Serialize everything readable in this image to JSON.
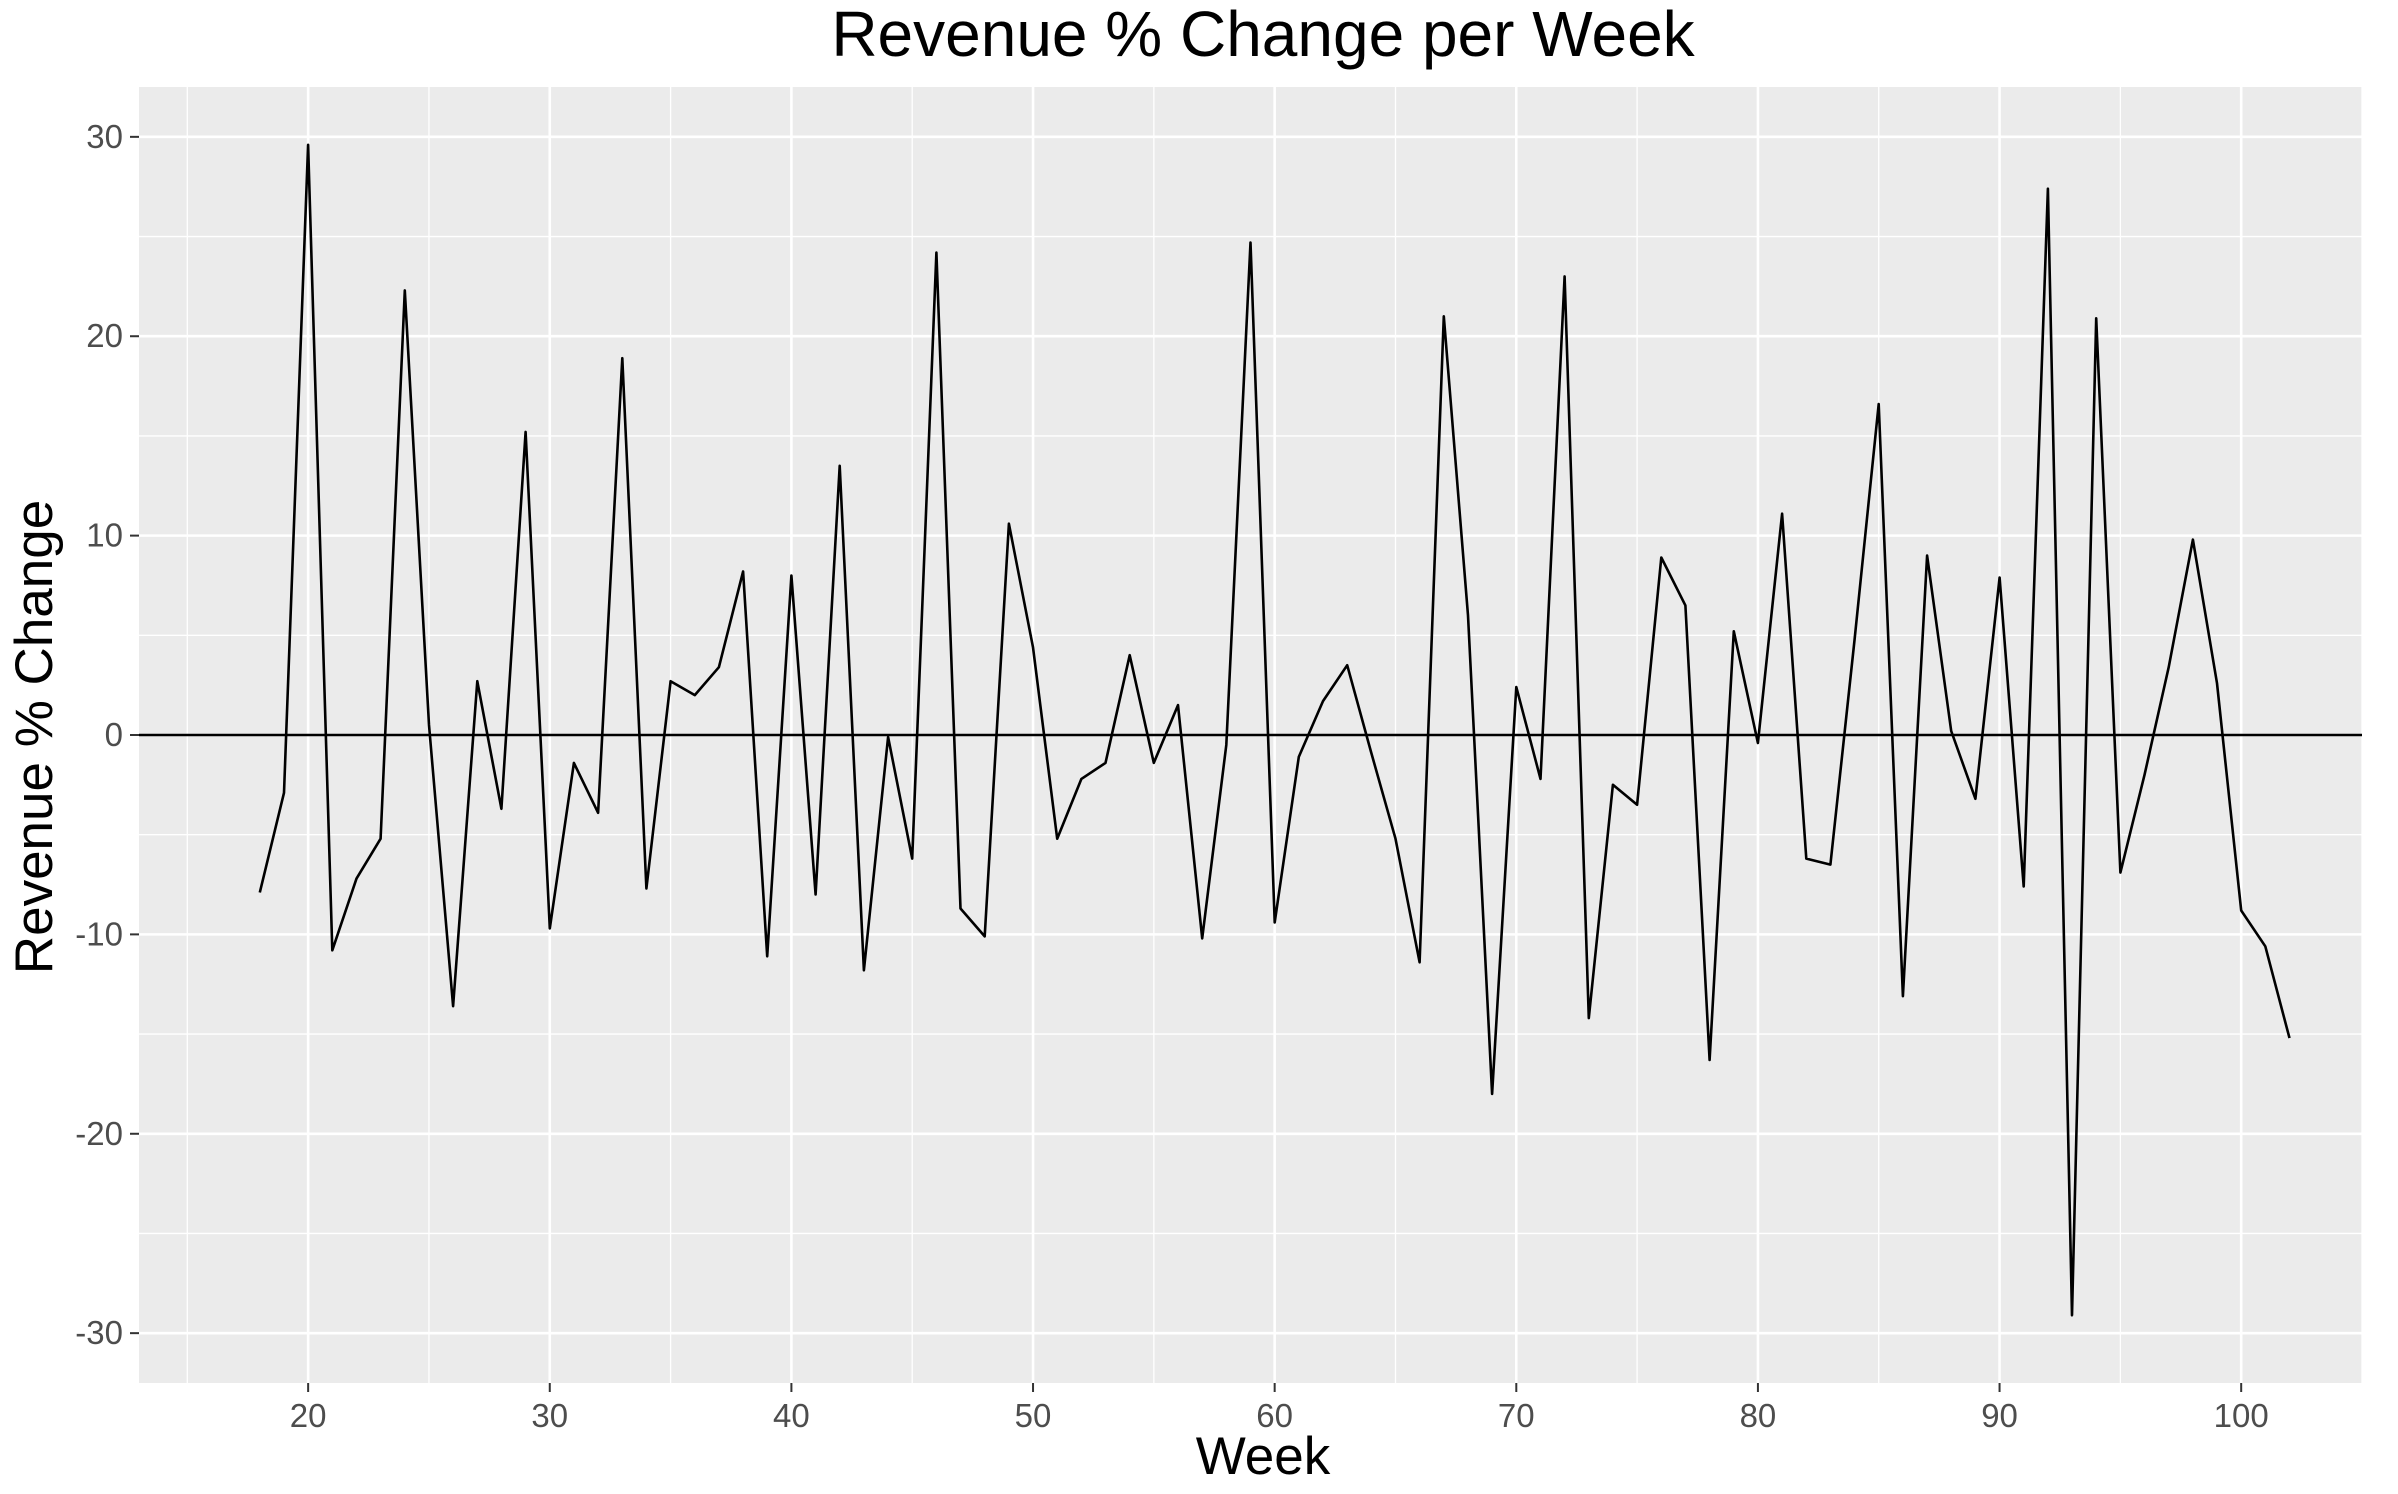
{
  "chart_data": {
    "type": "line",
    "title": "Revenue % Change per Week",
    "xlabel": "Week",
    "ylabel": "Revenue % Change",
    "xlim": [
      13,
      105
    ],
    "ylim": [
      -32.5,
      32.5
    ],
    "x_ticks": [
      20,
      30,
      40,
      50,
      60,
      70,
      80,
      90,
      100
    ],
    "y_ticks": [
      -30,
      -20,
      -10,
      0,
      10,
      20,
      30
    ],
    "x_tick_labels": [
      "20",
      "30",
      "40",
      "50",
      "60",
      "70",
      "80",
      "90",
      "100"
    ],
    "y_tick_labels": [
      "-30",
      "-20",
      "-10",
      "0",
      "10",
      "20",
      "30"
    ],
    "hline": 0,
    "grid": true,
    "legend": "none",
    "colors": {
      "panel": "#ebebeb",
      "grid": "#ffffff",
      "line": "#000000"
    },
    "x": [
      18,
      19,
      20,
      21,
      22,
      23,
      24,
      25,
      26,
      27,
      28,
      29,
      30,
      31,
      32,
      33,
      34,
      35,
      36,
      37,
      38,
      39,
      40,
      41,
      42,
      43,
      44,
      45,
      46,
      47,
      48,
      49,
      50,
      51,
      52,
      53,
      54,
      55,
      56,
      57,
      58,
      59,
      60,
      61,
      62,
      63,
      64,
      65,
      66,
      67,
      68,
      69,
      70,
      71,
      72,
      73,
      74,
      75,
      76,
      77,
      78,
      79,
      80,
      81,
      82,
      83,
      84,
      85,
      86,
      87,
      88,
      89,
      90,
      91,
      92,
      93,
      94,
      95,
      96,
      97,
      98,
      99,
      100,
      101,
      102
    ],
    "values": [
      -7.9,
      -2.9,
      29.6,
      -10.8,
      -7.2,
      -5.2,
      22.3,
      0.5,
      -13.6,
      2.7,
      -3.7,
      15.2,
      -9.7,
      -1.4,
      -3.9,
      18.9,
      -7.7,
      2.7,
      2.0,
      3.4,
      8.2,
      -11.1,
      8.0,
      -8.0,
      13.5,
      -11.8,
      -0.1,
      -6.2,
      24.2,
      -8.7,
      -10.1,
      10.6,
      4.4,
      -5.2,
      -2.2,
      -1.4,
      4.0,
      -1.4,
      1.5,
      -10.2,
      -0.5,
      24.7,
      -9.4,
      -1.1,
      1.7,
      3.5,
      -0.9,
      -5.2,
      -11.4,
      21.0,
      6.0,
      -18.0,
      2.4,
      -2.2,
      23.0,
      -14.2,
      -2.5,
      -3.5,
      8.9,
      6.5,
      -16.3,
      5.2,
      -0.4,
      11.1,
      -6.2,
      -6.5,
      4.8,
      16.6,
      -13.1,
      9.0,
      0.2,
      -3.2,
      7.9,
      -7.6,
      27.4,
      -29.1,
      20.9,
      -6.9,
      -2.0,
      3.4,
      9.8,
      2.6,
      -8.8,
      -10.6,
      -15.2
    ]
  }
}
